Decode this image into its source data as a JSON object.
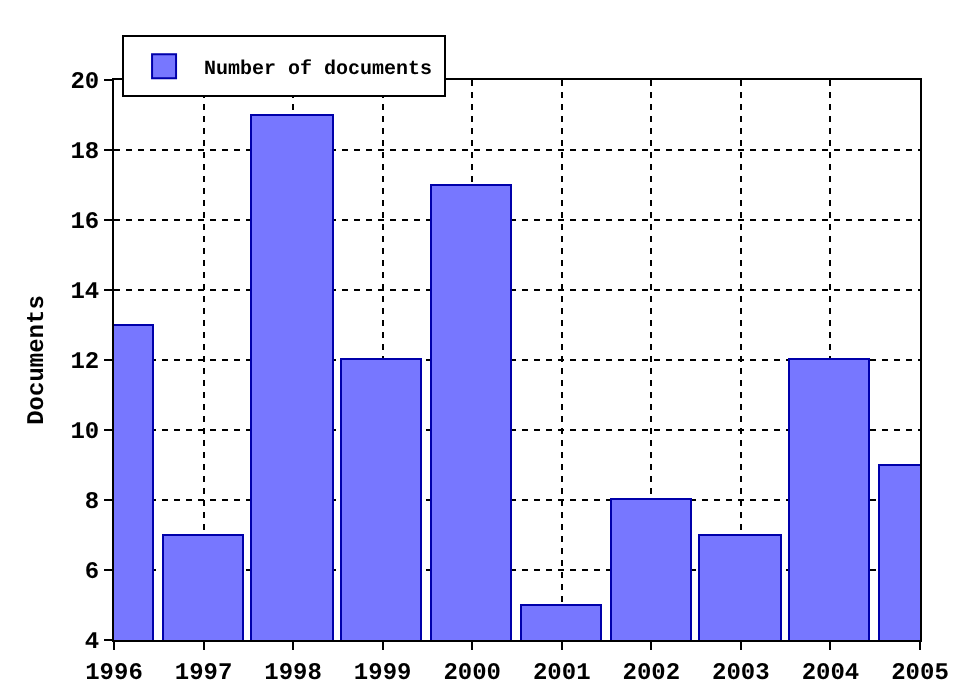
{
  "chart_data": {
    "type": "bar",
    "ylabel": "Documents",
    "x": [
      1996,
      1997,
      1998,
      1999,
      2000,
      2001,
      2002,
      2003,
      2004,
      2005
    ],
    "series": [
      {
        "name": "Number of documents",
        "color": "#7777ff",
        "values": [
          13,
          7,
          19,
          12,
          17,
          5,
          8,
          7,
          12,
          9
        ]
      }
    ],
    "xlim": [
      1996,
      2005
    ],
    "xticks": [
      1996,
      1997,
      1998,
      1999,
      2000,
      2001,
      2002,
      2003,
      2004,
      2005
    ],
    "ylim": [
      4,
      20
    ],
    "yticks": [
      4,
      6,
      8,
      10,
      12,
      14,
      16,
      18,
      20
    ],
    "grid": true,
    "legend": "top left"
  }
}
